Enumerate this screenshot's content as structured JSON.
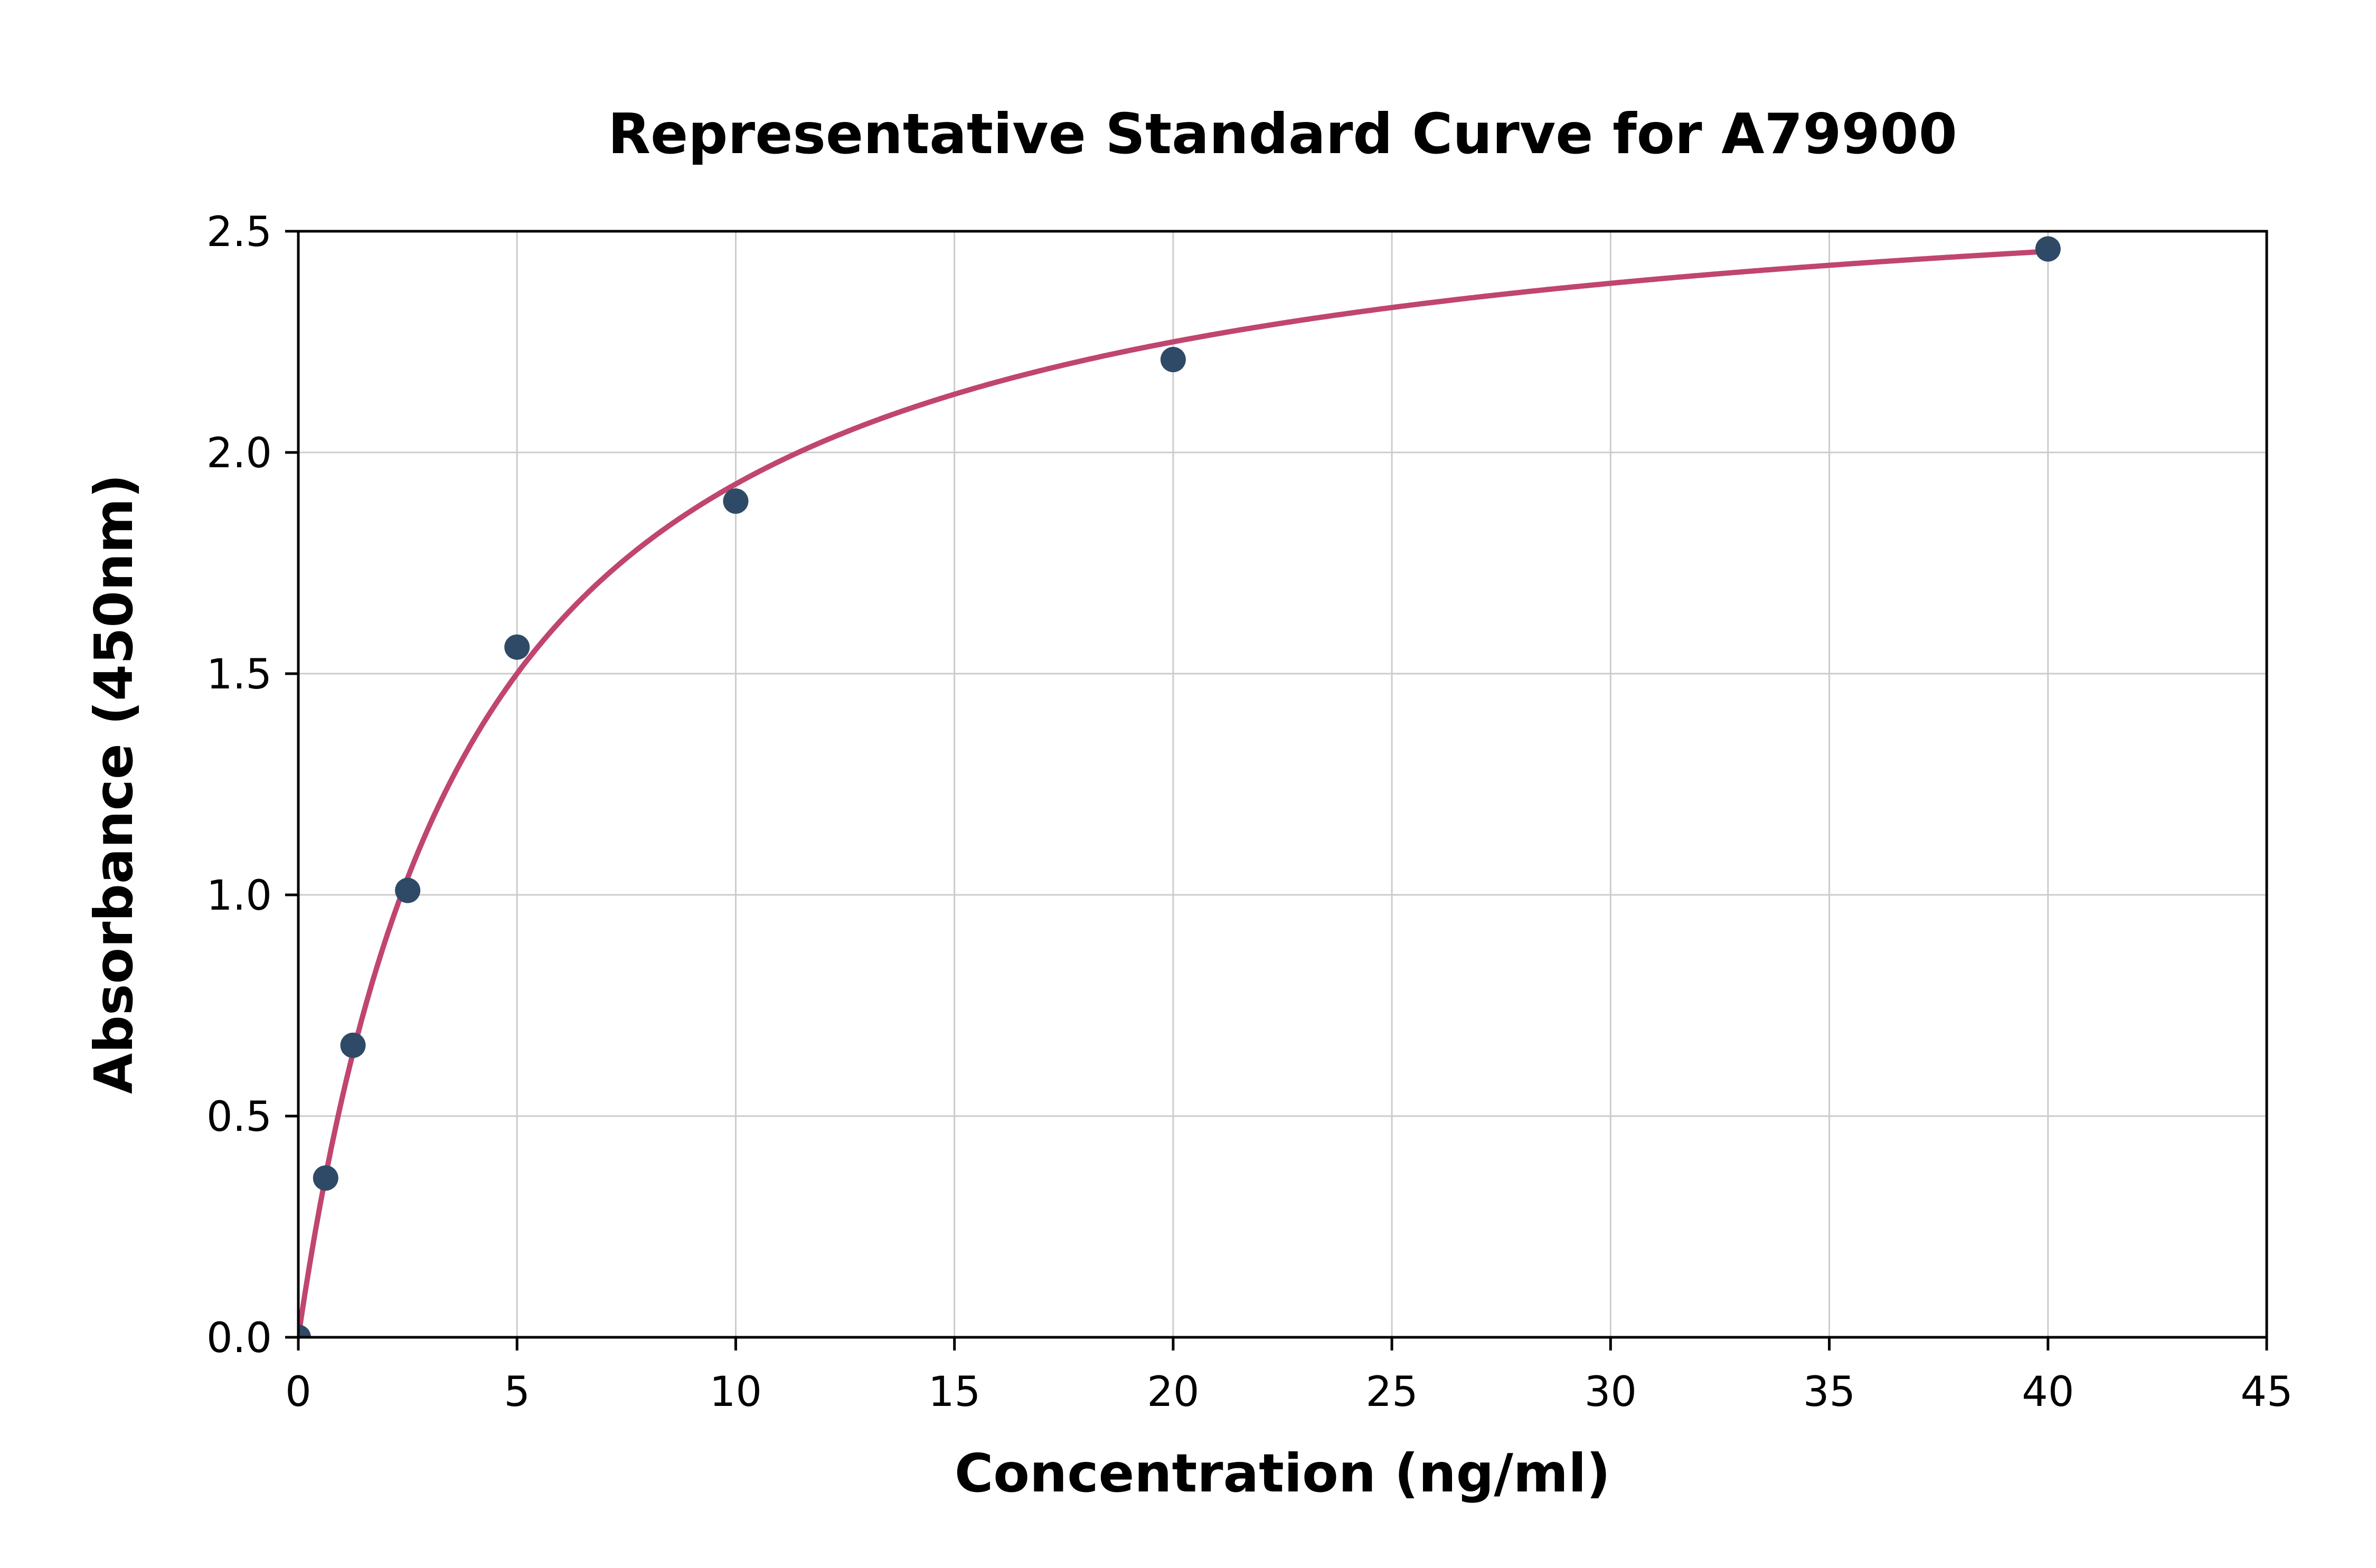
{
  "chart_data": {
    "type": "scatter",
    "title": "Representative Standard Curve for A79900",
    "xlabel": "Concentration (ng/ml)",
    "ylabel": "Absorbance (450nm)",
    "xlim": [
      0,
      45
    ],
    "ylim": [
      0,
      2.5
    ],
    "x_ticks": [
      0,
      5,
      10,
      15,
      20,
      25,
      30,
      35,
      40,
      45
    ],
    "x_tick_labels": [
      "0",
      "5",
      "10",
      "15",
      "20",
      "25",
      "30",
      "35",
      "40",
      "45"
    ],
    "y_ticks": [
      0.0,
      0.5,
      1.0,
      1.5,
      2.0,
      2.5
    ],
    "y_tick_labels": [
      "0.0",
      "0.5",
      "1.0",
      "1.5",
      "2.0",
      "2.5"
    ],
    "grid": true,
    "legend": false,
    "points": {
      "x": [
        0,
        0.625,
        1.25,
        2.5,
        5,
        10,
        20,
        40
      ],
      "y": [
        0.0,
        0.36,
        0.66,
        1.01,
        1.56,
        1.89,
        2.21,
        2.46
      ]
    },
    "fit_curve": {
      "model": "saturation: y = Vmax * x / (Km + x)",
      "vmax": 2.7,
      "km": 4.0,
      "x_range": [
        0,
        40
      ]
    },
    "colors": {
      "points": "#2e4a66",
      "curve": "#c0456f",
      "grid": "#cccccc",
      "axes": "#000000",
      "background": "#ffffff"
    }
  }
}
